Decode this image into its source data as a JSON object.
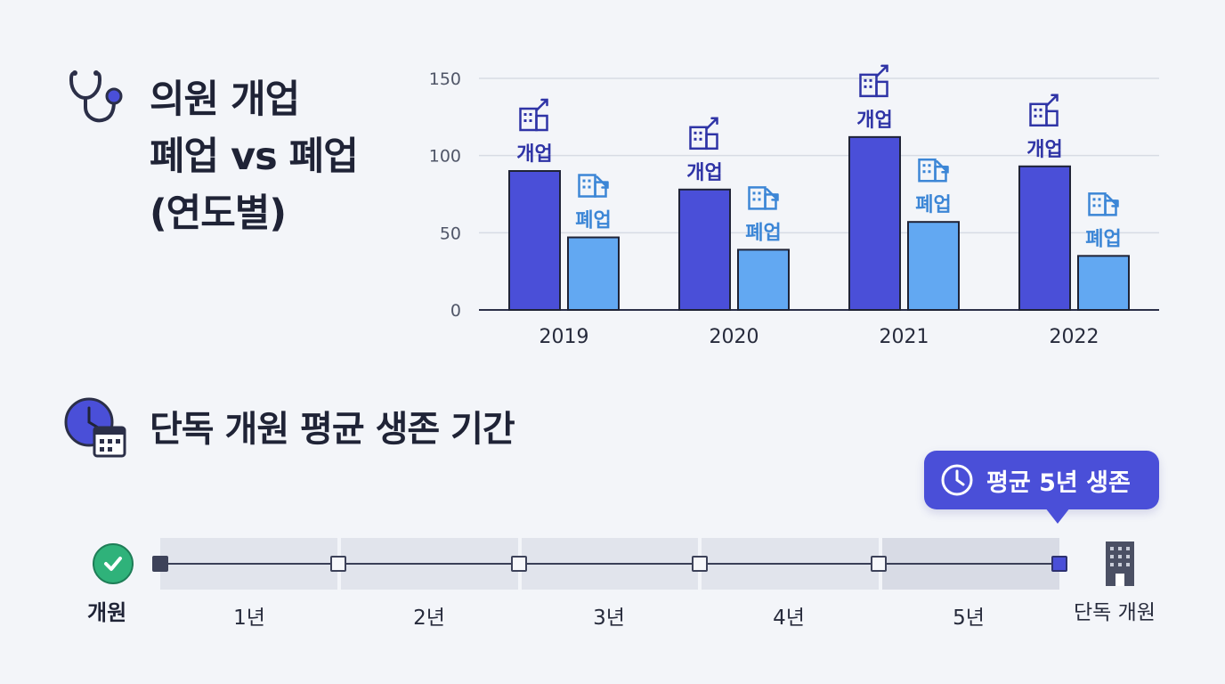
{
  "header": {
    "title_lines": [
      "의원 개업",
      "폐업 vs 폐업",
      "(연도별)"
    ],
    "icon": "stethoscope-icon"
  },
  "chart_data": {
    "type": "bar",
    "categories": [
      "2019",
      "2020",
      "2021",
      "2022"
    ],
    "series": [
      {
        "name": "개업",
        "values": [
          90,
          78,
          112,
          93
        ],
        "color": "#4a4fd8",
        "icon": "building-up-icon"
      },
      {
        "name": "폐업",
        "values": [
          47,
          39,
          57,
          35
        ],
        "color": "#62a8f2",
        "icon": "building-down-icon"
      }
    ],
    "yticks": [
      0,
      50,
      100,
      150
    ],
    "ylim": [
      0,
      150
    ],
    "grid": true,
    "legend": "none"
  },
  "survival": {
    "title": "단독 개원 평균 생존 기간",
    "icon": "clock-calendar-icon",
    "callout": "평균 5년 생존",
    "callout_icon": "clock-icon",
    "start_label": "개원",
    "start_icon": "check-icon",
    "years": [
      "1년",
      "2년",
      "3년",
      "4년",
      "5년"
    ],
    "end_label": "단독 개원",
    "end_icon": "building-icon",
    "survival_years": 5,
    "accent": "#4a4fd8"
  }
}
